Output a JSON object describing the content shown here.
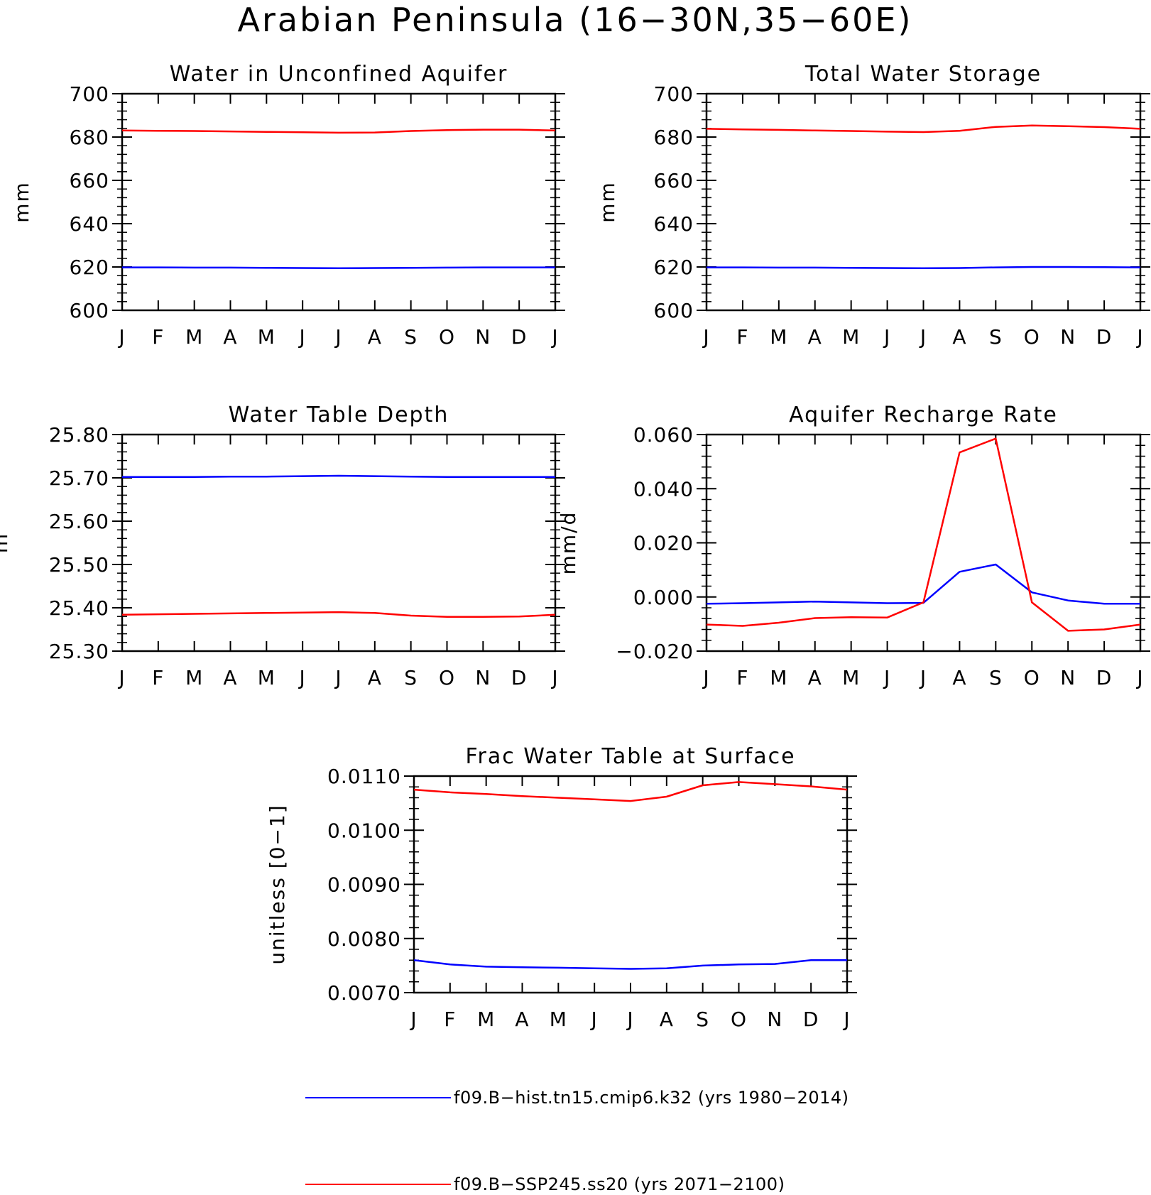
{
  "title": "Arabian Peninsula (16−30N,35−60E)",
  "colors": {
    "hist": "#0000ff",
    "ssp": "#ff0000",
    "axes": "#000000"
  },
  "legend": {
    "hist": "f09.B−hist.tn15.cmip6.k32 (yrs 1980−2014)",
    "ssp": "f09.B−SSP245.ss20 (yrs 2071−2100)"
  },
  "chart_data": [
    {
      "type": "line",
      "title": "Water in Unconfined Aquifer",
      "ylabel": "mm",
      "xlabel": "",
      "categories": [
        "J",
        "F",
        "M",
        "A",
        "M",
        "J",
        "J",
        "A",
        "S",
        "O",
        "N",
        "D",
        "J"
      ],
      "ylim": [
        600,
        700
      ],
      "yticks": [
        "700",
        "680",
        "660",
        "640",
        "620",
        "600"
      ],
      "ytick_values": [
        700,
        680,
        660,
        640,
        620,
        600
      ],
      "series": [
        {
          "name": "f09.B−hist.tn15.cmip6.k32 (yrs 1980−2014)",
          "color": "#0000ff",
          "values": [
            619.8,
            619.8,
            619.7,
            619.7,
            619.6,
            619.5,
            619.4,
            619.5,
            619.6,
            619.7,
            619.8,
            619.8,
            619.8
          ]
        },
        {
          "name": "f09.B−SSP245.ss20 (yrs 2071−2100)",
          "color": "#ff0000",
          "values": [
            683.0,
            682.9,
            682.8,
            682.6,
            682.4,
            682.2,
            682.0,
            682.1,
            682.8,
            683.2,
            683.4,
            683.4,
            683.0
          ]
        }
      ]
    },
    {
      "type": "line",
      "title": "Total Water Storage",
      "ylabel": "mm",
      "xlabel": "",
      "categories": [
        "J",
        "F",
        "M",
        "A",
        "M",
        "J",
        "J",
        "A",
        "S",
        "O",
        "N",
        "D",
        "J"
      ],
      "ylim": [
        600,
        700
      ],
      "yticks": [
        "700",
        "680",
        "660",
        "640",
        "620",
        "600"
      ],
      "ytick_values": [
        700,
        680,
        660,
        640,
        620,
        600
      ],
      "series": [
        {
          "name": "f09.B−hist.tn15.cmip6.k32 (yrs 1980−2014)",
          "color": "#0000ff",
          "values": [
            619.8,
            619.8,
            619.7,
            619.7,
            619.6,
            619.5,
            619.4,
            619.5,
            619.8,
            620.0,
            620.0,
            619.9,
            619.8
          ]
        },
        {
          "name": "f09.B−SSP245.ss20 (yrs 2071−2100)",
          "color": "#ff0000",
          "values": [
            683.8,
            683.5,
            683.3,
            683.0,
            682.8,
            682.5,
            682.3,
            682.9,
            684.7,
            685.3,
            685.0,
            684.6,
            683.8
          ]
        }
      ]
    },
    {
      "type": "line",
      "title": "Water Table Depth",
      "ylabel": "m",
      "xlabel": "",
      "categories": [
        "J",
        "F",
        "M",
        "A",
        "M",
        "J",
        "J",
        "A",
        "S",
        "O",
        "N",
        "D",
        "J"
      ],
      "ylim": [
        25.3,
        25.8
      ],
      "yticks": [
        "25.80",
        "25.70",
        "25.60",
        "25.50",
        "25.40",
        "25.30"
      ],
      "ytick_values": [
        25.8,
        25.7,
        25.6,
        25.5,
        25.4,
        25.3
      ],
      "series": [
        {
          "name": "f09.B−hist.tn15.cmip6.k32 (yrs 1980−2014)",
          "color": "#0000ff",
          "values": [
            25.702,
            25.702,
            25.702,
            25.703,
            25.703,
            25.704,
            25.705,
            25.704,
            25.703,
            25.702,
            25.702,
            25.702,
            25.702
          ]
        },
        {
          "name": "f09.B−SSP245.ss20 (yrs 2071−2100)",
          "color": "#ff0000",
          "values": [
            25.384,
            25.385,
            25.386,
            25.387,
            25.388,
            25.389,
            25.39,
            25.388,
            25.382,
            25.379,
            25.379,
            25.38,
            25.384
          ]
        }
      ]
    },
    {
      "type": "line",
      "title": "Aquifer Recharge Rate",
      "ylabel": "mm/d",
      "xlabel": "",
      "categories": [
        "J",
        "F",
        "M",
        "A",
        "M",
        "J",
        "J",
        "A",
        "S",
        "O",
        "N",
        "D",
        "J"
      ],
      "ylim": [
        -0.02,
        0.06
      ],
      "yticks": [
        "0.060",
        "0.040",
        "0.020",
        "0.000",
        "−0.020"
      ],
      "ytick_values": [
        0.06,
        0.04,
        0.02,
        0.0,
        -0.02
      ],
      "series": [
        {
          "name": "f09.B−hist.tn15.cmip6.k32 (yrs 1980−2014)",
          "color": "#0000ff",
          "values": [
            -0.0025,
            -0.0023,
            -0.002,
            -0.0017,
            -0.002,
            -0.0023,
            -0.0022,
            0.0093,
            0.012,
            0.0017,
            -0.0013,
            -0.0025,
            -0.0025
          ]
        },
        {
          "name": "f09.B−SSP245.ss20 (yrs 2071−2100)",
          "color": "#ff0000",
          "values": [
            -0.0102,
            -0.0107,
            -0.0095,
            -0.0078,
            -0.0075,
            -0.0076,
            -0.002,
            0.0534,
            0.0585,
            -0.002,
            -0.0125,
            -0.012,
            -0.0102
          ]
        }
      ]
    },
    {
      "type": "line",
      "title": "Frac Water Table at Surface",
      "ylabel": "unitless [0−1]",
      "xlabel": "",
      "categories": [
        "J",
        "F",
        "M",
        "A",
        "M",
        "J",
        "J",
        "A",
        "S",
        "O",
        "N",
        "D",
        "J"
      ],
      "ylim": [
        0.007,
        0.011
      ],
      "yticks": [
        "0.0110",
        "0.0100",
        "0.0090",
        "0.0080",
        "0.0070"
      ],
      "ytick_values": [
        0.011,
        0.01,
        0.009,
        0.008,
        0.007
      ],
      "series": [
        {
          "name": "f09.B−hist.tn15.cmip6.k32 (yrs 1980−2014)",
          "color": "#0000ff",
          "values": [
            0.0076,
            0.00752,
            0.00748,
            0.00747,
            0.00746,
            0.00745,
            0.00744,
            0.00745,
            0.0075,
            0.00752,
            0.00753,
            0.0076,
            0.0076
          ]
        },
        {
          "name": "f09.B−SSP245.ss20 (yrs 2071−2100)",
          "color": "#ff0000",
          "values": [
            0.01075,
            0.0107,
            0.01067,
            0.01063,
            0.0106,
            0.01057,
            0.01054,
            0.01062,
            0.01083,
            0.01089,
            0.01085,
            0.01081,
            0.01075
          ]
        }
      ]
    }
  ]
}
